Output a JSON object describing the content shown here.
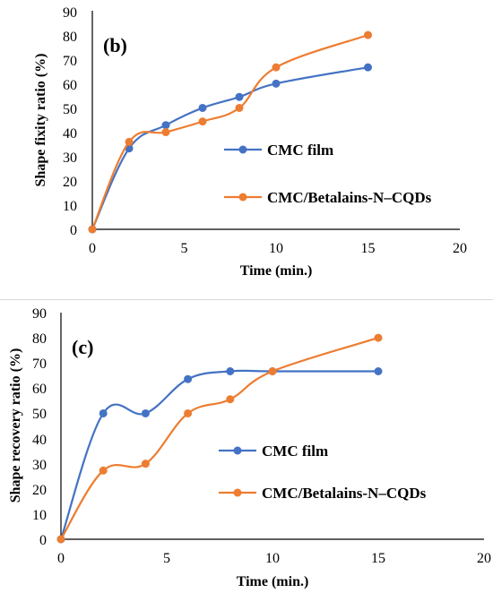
{
  "chart_data": [
    {
      "type": "line",
      "panel_label": "(b)",
      "xlabel": "Time (min.)",
      "ylabel": "Shape fixity ratio (%)",
      "xlim": [
        0,
        20
      ],
      "ylim": [
        0,
        90
      ],
      "xticks": [
        "0",
        "5",
        "10",
        "15",
        "20"
      ],
      "yticks": [
        "0",
        "10",
        "20",
        "30",
        "40",
        "50",
        "60",
        "70",
        "80",
        "90"
      ],
      "grid": false,
      "legend_position": "center-right",
      "series": [
        {
          "name": "CMC film",
          "color": "#4472C4",
          "x": [
            0,
            2,
            4,
            6,
            8,
            10,
            15
          ],
          "y": [
            0,
            33.3,
            42.9,
            50,
            54.5,
            60,
            66.7
          ]
        },
        {
          "name": "CMC/Betalains-N–CQDs",
          "color": "#ED7D31",
          "x": [
            0,
            2,
            4,
            6,
            8,
            10,
            15
          ],
          "y": [
            0,
            36,
            40,
            44.4,
            50,
            66.7,
            80
          ]
        }
      ]
    },
    {
      "type": "line",
      "panel_label": "(c)",
      "xlabel": "Time (min.)",
      "ylabel": "Shape recovery ratio (%)",
      "xlim": [
        0,
        20
      ],
      "ylim": [
        0,
        90
      ],
      "xticks": [
        "0",
        "5",
        "10",
        "15",
        "20"
      ],
      "yticks": [
        "0",
        "10",
        "20",
        "30",
        "40",
        "50",
        "60",
        "70",
        "80",
        "90"
      ],
      "grid": false,
      "legend_position": "center-right",
      "series": [
        {
          "name": "CMC film",
          "color": "#4472C4",
          "x": [
            0,
            2,
            4,
            6,
            8,
            10,
            15
          ],
          "y": [
            0,
            50,
            50,
            63.6,
            66.7,
            66.7,
            66.7
          ]
        },
        {
          "name": "CMC/Betalains-N–CQDs",
          "color": "#ED7D31",
          "x": [
            0,
            2,
            4,
            6,
            8,
            10,
            15
          ],
          "y": [
            0,
            27.3,
            30,
            50,
            55.6,
            66.7,
            80
          ]
        }
      ]
    }
  ]
}
